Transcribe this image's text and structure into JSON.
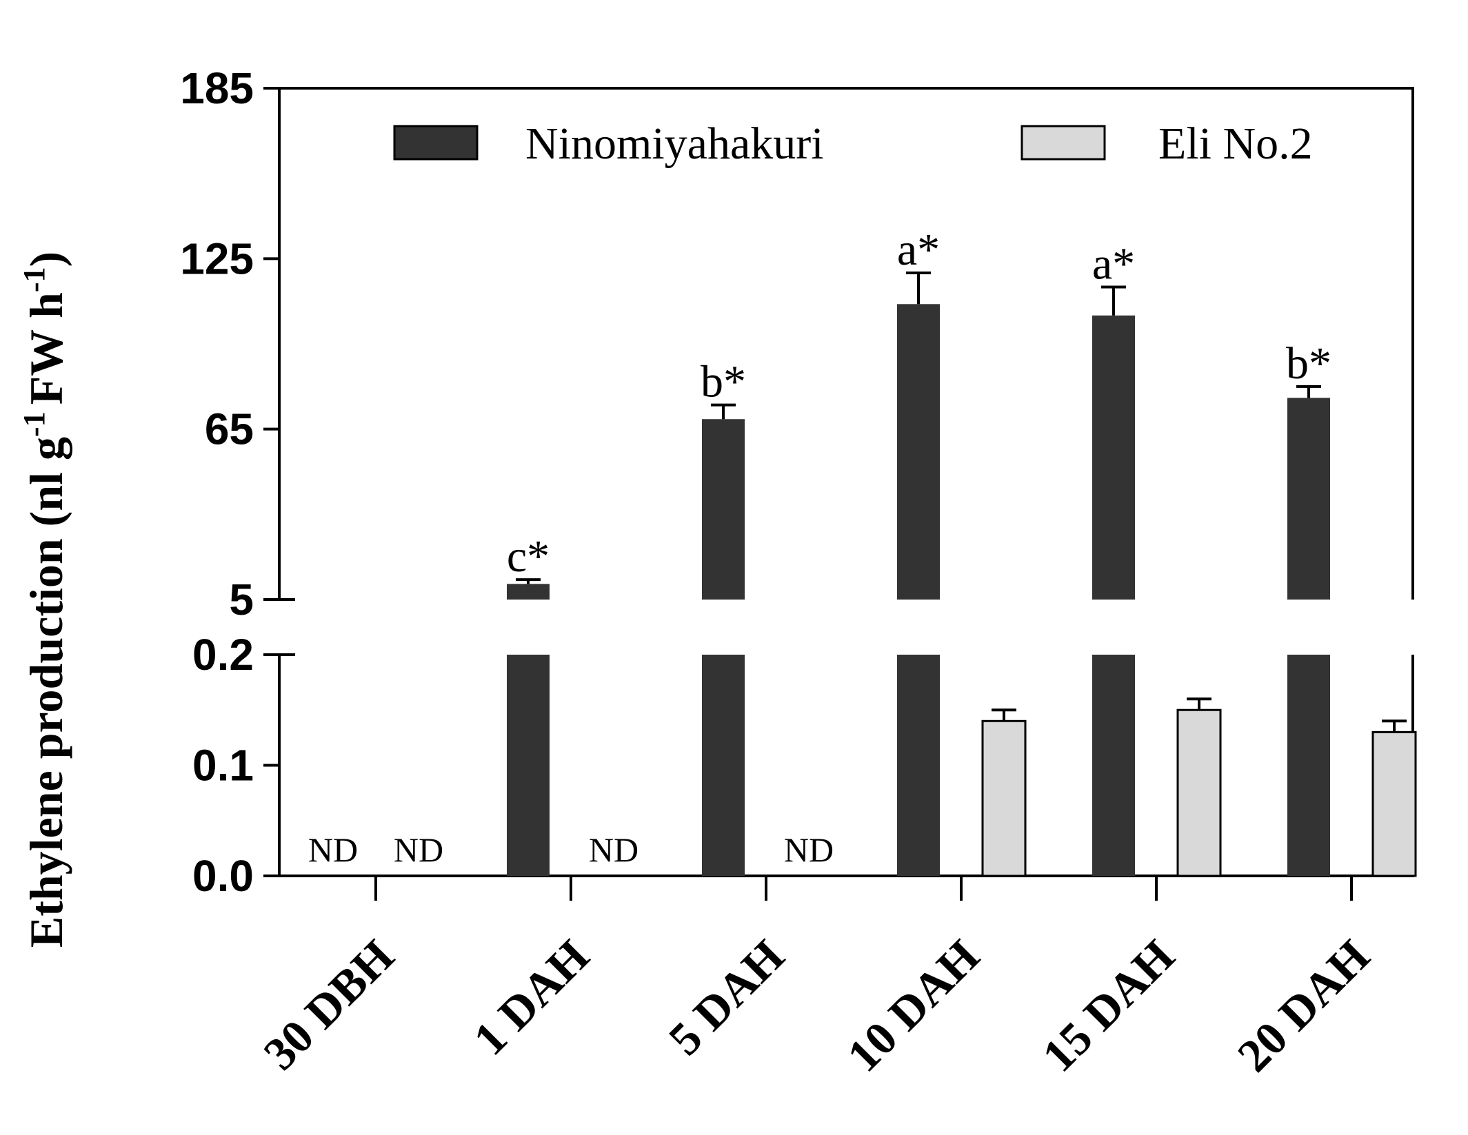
{
  "chart_data": {
    "type": "bar",
    "ylabel_main": "Ethylene production (nl g",
    "ylabel_sup1": "-1",
    "ylabel_mid": "FW h",
    "ylabel_sup2": "-1",
    "ylabel_close": ")",
    "ylabel_full": "Ethylene production (nl g-1 FW h-1)",
    "categories": [
      "30 DBH",
      "1 DAH",
      "5 DAH",
      "10 DAH",
      "15 DAH",
      "20 DAH"
    ],
    "y_axis_lower": {
      "range": [
        0.0,
        0.2
      ],
      "ticks": [
        "0.0",
        "0.1",
        "0.2"
      ]
    },
    "y_axis_upper": {
      "range": [
        5,
        185
      ],
      "ticks": [
        "5",
        "65",
        "125",
        "185"
      ]
    },
    "series": [
      {
        "name": "Ninomiyahakuri",
        "color": "#333333",
        "values": [
          null,
          10.5,
          68.5,
          109,
          105,
          76
        ],
        "errors": [
          null,
          1.5,
          5,
          11,
          10,
          4
        ],
        "labels": [
          "ND",
          "c*",
          "b*",
          "a*",
          "a*",
          "b*"
        ]
      },
      {
        "name": "Eli No.2",
        "color": "#d9d9d9",
        "values": [
          null,
          null,
          null,
          0.14,
          0.15,
          0.13
        ],
        "errors": [
          null,
          null,
          null,
          0.01,
          0.01,
          0.01
        ],
        "labels": [
          "ND",
          "ND",
          "ND",
          "",
          "",
          ""
        ]
      }
    ],
    "legend": {
      "position": "top",
      "entries": [
        "Ninomiyahakuri",
        "Eli No.2"
      ]
    }
  }
}
